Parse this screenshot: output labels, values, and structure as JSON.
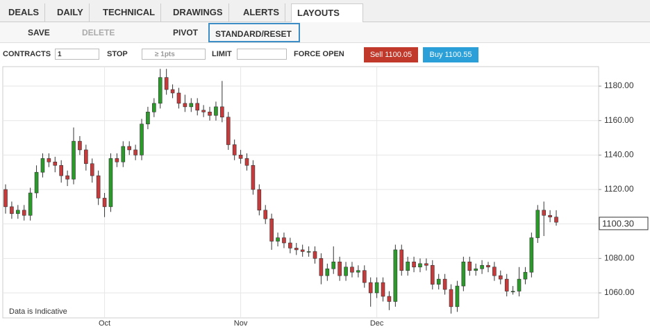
{
  "toolbar": {
    "menus": [
      "DEALS",
      "DAILY",
      "TECHNICAL",
      "DRAWINGS",
      "ALERTS",
      "LAYOUTS"
    ],
    "actions": [
      "SAVE",
      "DELETE",
      "PIVOT",
      "STANDARD/RESET"
    ],
    "order": {
      "contracts_label": "CONTRACTS",
      "contracts_value": "1",
      "stop_label": "STOP",
      "stop_placeholder": "≥ 1pts",
      "limit_label": "LIMIT",
      "force_open_label": "FORCE OPEN",
      "sell": "Sell 1100.05",
      "buy": "Buy 1100.55"
    }
  },
  "chart_data": {
    "type": "candlestick",
    "annotation": "Data is Indicative",
    "categories": [
      null,
      null,
      null,
      null,
      null,
      null,
      null,
      null,
      null,
      null,
      null,
      null,
      null,
      null,
      null,
      null,
      "Oct",
      null,
      null,
      null,
      null,
      null,
      null,
      null,
      null,
      null,
      null,
      null,
      null,
      null,
      null,
      null,
      null,
      null,
      null,
      null,
      null,
      null,
      "Nov",
      null,
      null,
      null,
      null,
      null,
      null,
      null,
      null,
      null,
      null,
      null,
      null,
      null,
      null,
      null,
      null,
      null,
      null,
      null,
      null,
      null,
      "Dec",
      null,
      null,
      null,
      null,
      null,
      null,
      null,
      null,
      null,
      null,
      null,
      null,
      null,
      null,
      null,
      null,
      null,
      null,
      null,
      null,
      null,
      null,
      null,
      null,
      null,
      null,
      null,
      null,
      null
    ],
    "open": [
      1120,
      1110,
      1106,
      1108,
      1105,
      1118,
      1130,
      1138,
      1136,
      1134,
      1128,
      1126,
      1148,
      1143,
      1135,
      1128,
      1115,
      1110,
      1138,
      1136,
      1145,
      1143,
      1140,
      1158,
      1165,
      1170,
      1185,
      1178,
      1176,
      1170,
      1168,
      1170,
      1166,
      1165,
      1163,
      1168,
      1162,
      1146,
      1140,
      1138,
      1134,
      1120,
      1108,
      1103,
      1090,
      1092,
      1089,
      1086,
      1085,
      1084,
      1084,
      1080,
      1070,
      1074,
      1078,
      1070,
      1075,
      1072,
      1073,
      1066,
      1060,
      1066,
      1058,
      1055,
      1085,
      1073,
      1078,
      1075,
      1077,
      1076,
      1065,
      1068,
      1062,
      1052,
      1064,
      1078,
      1073,
      1074,
      1076,
      1075,
      1070,
      1068,
      1061,
      1061,
      1068,
      1072,
      1092,
      1108,
      1105,
      1104
    ],
    "high": [
      1123,
      1113,
      1111,
      1111,
      1121,
      1134,
      1141,
      1141,
      1139,
      1137,
      1131,
      1156,
      1151,
      1146,
      1138,
      1131,
      1118,
      1141,
      1141,
      1148,
      1148,
      1146,
      1161,
      1168,
      1173,
      1190,
      1190,
      1181,
      1179,
      1175,
      1173,
      1173,
      1169,
      1168,
      1171,
      1183,
      1165,
      1149,
      1143,
      1141,
      1137,
      1123,
      1111,
      1106,
      1095,
      1095,
      1092,
      1089,
      1088,
      1087,
      1087,
      1083,
      1077,
      1087,
      1081,
      1078,
      1078,
      1076,
      1076,
      1069,
      1069,
      1069,
      1061,
      1088,
      1088,
      1081,
      1081,
      1080,
      1080,
      1079,
      1071,
      1071,
      1065,
      1067,
      1081,
      1081,
      1077,
      1079,
      1078,
      1078,
      1073,
      1071,
      1064,
      1075,
      1075,
      1095,
      1111,
      1113,
      1108,
      1108
    ],
    "low": [
      1106,
      1103,
      1103,
      1102,
      1102,
      1115,
      1127,
      1133,
      1130,
      1124,
      1122,
      1123,
      1140,
      1131,
      1124,
      1111,
      1104,
      1107,
      1133,
      1133,
      1140,
      1137,
      1137,
      1155,
      1162,
      1167,
      1175,
      1173,
      1167,
      1165,
      1165,
      1163,
      1162,
      1160,
      1160,
      1159,
      1143,
      1137,
      1135,
      1131,
      1117,
      1105,
      1100,
      1085,
      1087,
      1086,
      1083,
      1082,
      1081,
      1081,
      1077,
      1065,
      1067,
      1071,
      1067,
      1067,
      1069,
      1069,
      1063,
      1052,
      1057,
      1055,
      1050,
      1052,
      1070,
      1070,
      1072,
      1072,
      1073,
      1062,
      1062,
      1059,
      1048,
      1049,
      1061,
      1070,
      1070,
      1071,
      1072,
      1067,
      1065,
      1058,
      1059,
      1058,
      1065,
      1069,
      1089,
      1093,
      1101,
      1099
    ],
    "close": [
      1110,
      1106,
      1108,
      1105,
      1118,
      1130,
      1138,
      1136,
      1134,
      1128,
      1126,
      1148,
      1143,
      1135,
      1128,
      1115,
      1110,
      1138,
      1136,
      1145,
      1143,
      1140,
      1158,
      1165,
      1170,
      1185,
      1178,
      1176,
      1170,
      1168,
      1170,
      1166,
      1165,
      1163,
      1168,
      1162,
      1146,
      1140,
      1138,
      1134,
      1120,
      1108,
      1103,
      1090,
      1092,
      1089,
      1086,
      1085,
      1084,
      1084,
      1080,
      1070,
      1074,
      1078,
      1070,
      1075,
      1072,
      1073,
      1066,
      1060,
      1066,
      1058,
      1055,
      1085,
      1073,
      1078,
      1075,
      1077,
      1076,
      1065,
      1068,
      1062,
      1052,
      1064,
      1078,
      1073,
      1074,
      1076,
      1075,
      1070,
      1068,
      1061,
      1061,
      1068,
      1072,
      1092,
      1108,
      1105,
      1104,
      1101
    ],
    "up_color": "#2b9a2b",
    "down_color": "#c53b3b",
    "ylim": [
      1045.5,
      1191.3
    ],
    "yticks": [
      {
        "value": 1060,
        "label": "1060.00"
      },
      {
        "value": 1080,
        "label": "1080.00"
      },
      {
        "value": 1100,
        "label": "1100.00"
      },
      {
        "value": 1120,
        "label": "1120.00"
      },
      {
        "value": 1140,
        "label": "1140.00"
      },
      {
        "value": 1160,
        "label": "1160.00"
      },
      {
        "value": 1180,
        "label": "1180.00"
      }
    ],
    "last_price": {
      "value": 1100.3,
      "label": "1100.30"
    },
    "grid": true
  }
}
